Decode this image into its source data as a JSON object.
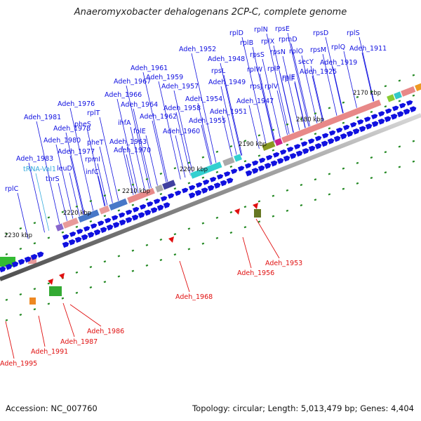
{
  "title": "Anaeromyxobacter dehalogenans 2CP-C, complete genome",
  "footer": {
    "accession": "Accession: NC_007760",
    "summary": "Topology: circular; Length: 5,013,479 bp; Genes: 4,404"
  },
  "colors": {
    "forward_gene": "#1010e0",
    "reverse_gene": "#e01010",
    "label_line": "#1010e0",
    "trna_label": "#33aadd",
    "backbone": "#808080",
    "tick": "#228822"
  },
  "scale_labels": [
    "2170 kbp",
    "2180 kbp",
    "2190 kbp",
    "2200 kbp",
    "2210 kbp",
    "2220 kbp",
    "2230 kbp"
  ],
  "upper_labels": [
    "rplD",
    "rplN",
    "rpsE",
    "rplB",
    "rplX",
    "rpmD",
    "rpsD",
    "rplS",
    "rpsS",
    "rpsN",
    "rplO",
    "rpsM",
    "rplQ",
    "Adeh_1911",
    "Adeh_1952",
    "Adeh_1948",
    "secY",
    "Adeh_1919",
    "rpsL",
    "rplW",
    "rplP",
    "rplF",
    "Adeh_1925",
    "Adeh_1961",
    "Adeh_1949",
    "rpsJ",
    "rplV",
    "rplE",
    "Adeh_1959",
    "Adeh_1967",
    "Adeh_1957",
    "Adeh_1966",
    "Adeh_1954",
    "Adeh_1947",
    "Adeh_1976",
    "Adeh_1964",
    "Adeh_1958",
    "rplT",
    "Adeh_1951",
    "Adeh_1981",
    "pheS",
    "Adeh_1962",
    "Adeh_1955",
    "ihfA",
    "Adeh_1978",
    "folE",
    "Adeh_1960",
    "Adeh_1980",
    "pheT",
    "Adeh_1963",
    "rpmI",
    "Adeh_1977",
    "Adeh_1970",
    "infC",
    "Adeh_1983",
    "tRNA-Val1",
    "leuD",
    "thrS",
    "rplC"
  ],
  "lower_labels": [
    "Adeh_1953",
    "Adeh_1956",
    "Adeh_1968",
    "Adeh_1986",
    "Adeh_1987",
    "Adeh_1991",
    "Adeh_1995"
  ]
}
